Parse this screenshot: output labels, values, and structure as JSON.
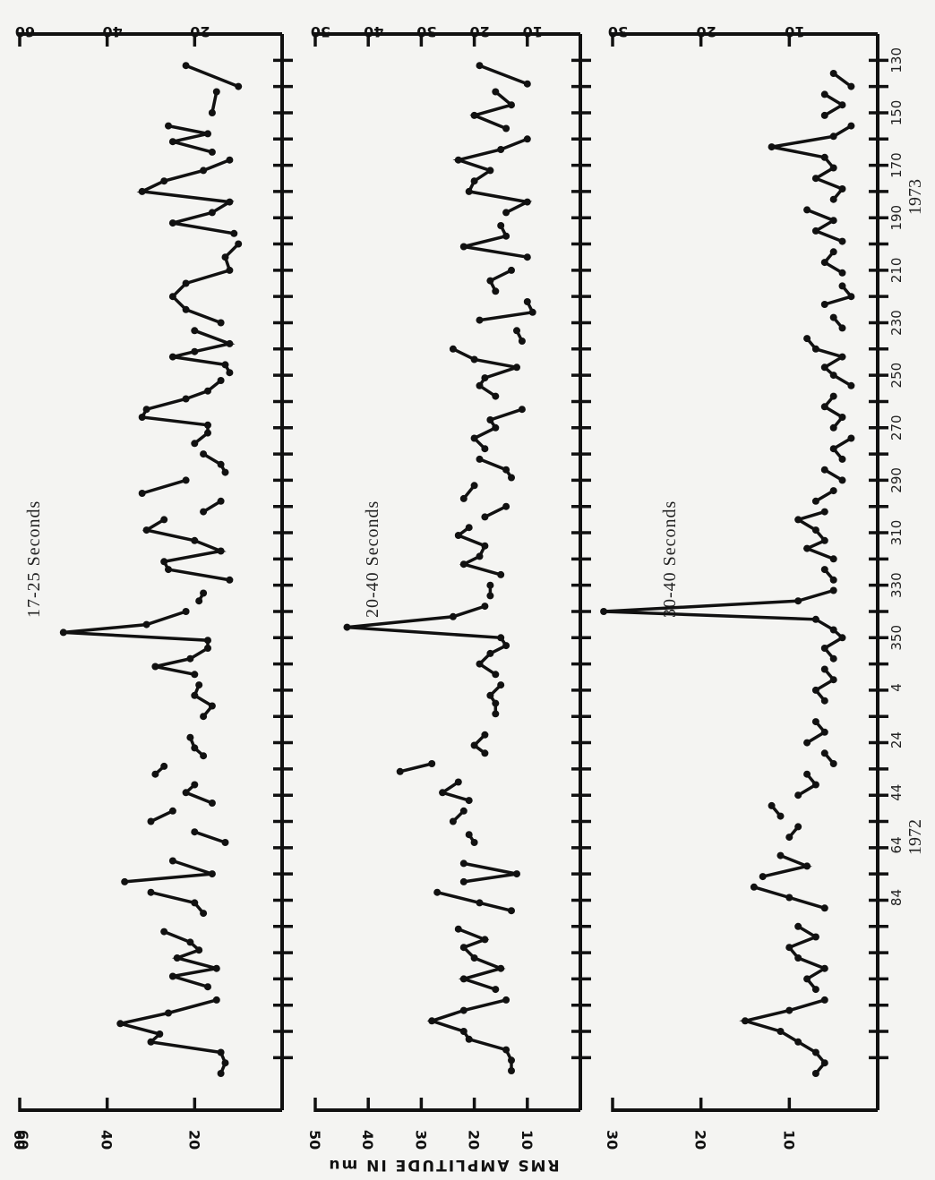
{
  "figure": {
    "ylabel": "RMS AMPLITUDE IN mu",
    "year_labels": [
      "1972",
      "1973"
    ],
    "day_ticks": [
      "130",
      "150",
      "170",
      "190",
      "210",
      "230",
      "250",
      "270",
      "290",
      "310",
      "330",
      "350",
      "4",
      "24",
      "44",
      "64",
      "84"
    ]
  },
  "chart_data": [
    {
      "type": "line",
      "title": "17-25 Seconds",
      "ylim": [
        0,
        60
      ],
      "yticks": [
        "20",
        "40",
        "60"
      ],
      "segments": [
        [
          [
            132,
            22
          ],
          [
            140,
            10
          ]
        ],
        [
          [
            142,
            15
          ],
          [
            150,
            16
          ]
        ],
        [
          [
            155,
            26
          ],
          [
            158,
            17
          ],
          [
            161,
            25
          ],
          [
            165,
            16
          ]
        ],
        [
          [
            168,
            12
          ],
          [
            172,
            18
          ],
          [
            176,
            27
          ],
          [
            180,
            32
          ],
          [
            184,
            12
          ],
          [
            188,
            16
          ],
          [
            192,
            25
          ],
          [
            196,
            11
          ]
        ],
        [
          [
            200,
            10
          ],
          [
            205,
            13
          ],
          [
            210,
            12
          ],
          [
            215,
            22
          ],
          [
            220,
            25
          ],
          [
            225,
            22
          ],
          [
            230,
            14
          ]
        ],
        [
          [
            233,
            20
          ],
          [
            238,
            12
          ],
          [
            241,
            20
          ],
          [
            243,
            25
          ],
          [
            246,
            13
          ],
          [
            249,
            12
          ]
        ],
        [
          [
            252,
            14
          ],
          [
            256,
            17
          ],
          [
            259,
            22
          ],
          [
            263,
            31
          ],
          [
            266,
            32
          ],
          [
            269,
            17
          ],
          [
            272,
            17
          ],
          [
            276,
            20
          ]
        ],
        [
          [
            280,
            18
          ],
          [
            284,
            14
          ],
          [
            287,
            13
          ]
        ],
        [
          [
            290,
            22
          ],
          [
            295,
            32
          ]
        ],
        [
          [
            298,
            14
          ],
          [
            302,
            18
          ]
        ],
        [
          [
            305,
            27
          ],
          [
            309,
            31
          ],
          [
            313,
            20
          ],
          [
            317,
            14
          ],
          [
            321,
            27
          ],
          [
            324,
            26
          ],
          [
            328,
            12
          ]
        ],
        [
          [
            333,
            18
          ],
          [
            336,
            19
          ]
        ],
        [
          [
            340,
            22
          ],
          [
            345,
            31
          ],
          [
            348,
            50
          ],
          [
            351,
            17
          ],
          [
            354,
            17
          ],
          [
            358,
            21
          ],
          [
            361,
            29
          ],
          [
            364,
            20
          ]
        ],
        [
          [
            368,
            19
          ],
          [
            372,
            20
          ],
          [
            376,
            16
          ],
          [
            380,
            18
          ]
        ],
        [
          [
            388,
            21
          ],
          [
            392,
            20
          ],
          [
            395,
            18
          ]
        ],
        [
          [
            399,
            27
          ],
          [
            402,
            29
          ]
        ],
        [
          [
            406,
            20
          ],
          [
            409,
            22
          ],
          [
            413,
            16
          ]
        ],
        [
          [
            416,
            25
          ],
          [
            420,
            30
          ]
        ],
        [
          [
            424,
            20
          ],
          [
            428,
            13
          ]
        ],
        [
          [
            435,
            25
          ],
          [
            440,
            16
          ],
          [
            443,
            36
          ]
        ],
        [
          [
            447,
            30
          ],
          [
            451,
            20
          ],
          [
            455,
            18
          ]
        ],
        [
          [
            462,
            27
          ],
          [
            466,
            21
          ],
          [
            469,
            19
          ],
          [
            472,
            24
          ],
          [
            476,
            15
          ],
          [
            479,
            25
          ],
          [
            483,
            17
          ]
        ],
        [
          [
            488,
            15
          ],
          [
            493,
            26
          ],
          [
            497,
            37
          ],
          [
            501,
            28
          ],
          [
            504,
            30
          ],
          [
            508,
            14
          ],
          [
            512,
            13
          ],
          [
            516,
            14
          ]
        ]
      ]
    },
    {
      "type": "line",
      "title": "20-40 Seconds",
      "ylim": [
        0,
        50
      ],
      "yticks": [
        "10",
        "20",
        "30",
        "40",
        "50"
      ],
      "segments": [
        [
          [
            132,
            19
          ],
          [
            139,
            10
          ]
        ],
        [
          [
            142,
            16
          ],
          [
            147,
            13
          ],
          [
            151,
            20
          ],
          [
            156,
            14
          ]
        ],
        [
          [
            160,
            10
          ],
          [
            164,
            15
          ],
          [
            168,
            23
          ],
          [
            172,
            17
          ],
          [
            176,
            20
          ],
          [
            180,
            21
          ],
          [
            184,
            10
          ],
          [
            188,
            14
          ]
        ],
        [
          [
            193,
            15
          ],
          [
            197,
            14
          ],
          [
            201,
            22
          ],
          [
            205,
            10
          ]
        ],
        [
          [
            210,
            13
          ],
          [
            214,
            17
          ],
          [
            218,
            16
          ]
        ],
        [
          [
            222,
            10
          ],
          [
            226,
            9
          ],
          [
            229,
            19
          ]
        ],
        [
          [
            233,
            12
          ],
          [
            237,
            11
          ]
        ],
        [
          [
            240,
            24
          ],
          [
            244,
            20
          ],
          [
            247,
            12
          ],
          [
            251,
            18
          ],
          [
            254,
            19
          ],
          [
            258,
            16
          ]
        ],
        [
          [
            263,
            11
          ],
          [
            267,
            17
          ],
          [
            270,
            16
          ],
          [
            274,
            20
          ],
          [
            278,
            18
          ]
        ],
        [
          [
            282,
            19
          ],
          [
            286,
            14
          ],
          [
            289,
            13
          ]
        ],
        [
          [
            292,
            20
          ],
          [
            297,
            22
          ]
        ],
        [
          [
            300,
            14
          ],
          [
            304,
            18
          ]
        ],
        [
          [
            308,
            21
          ],
          [
            311,
            23
          ],
          [
            315,
            18
          ],
          [
            319,
            19
          ],
          [
            322,
            22
          ],
          [
            326,
            15
          ]
        ],
        [
          [
            330,
            17
          ],
          [
            334,
            17
          ]
        ],
        [
          [
            338,
            18
          ],
          [
            342,
            24
          ],
          [
            346,
            44
          ],
          [
            350,
            15
          ],
          [
            353,
            14
          ],
          [
            356,
            17
          ],
          [
            360,
            19
          ],
          [
            364,
            16
          ]
        ],
        [
          [
            368,
            15
          ],
          [
            372,
            17
          ],
          [
            375,
            16
          ],
          [
            379,
            16
          ]
        ],
        [
          [
            387,
            18
          ],
          [
            391,
            20
          ],
          [
            394,
            18
          ]
        ],
        [
          [
            398,
            28
          ],
          [
            401,
            34
          ]
        ],
        [
          [
            405,
            23
          ],
          [
            409,
            26
          ],
          [
            412,
            21
          ]
        ],
        [
          [
            416,
            22
          ],
          [
            420,
            24
          ]
        ],
        [
          [
            425,
            21
          ],
          [
            428,
            20
          ]
        ],
        [
          [
            436,
            22
          ],
          [
            440,
            12
          ],
          [
            443,
            22
          ]
        ],
        [
          [
            447,
            27
          ],
          [
            451,
            19
          ],
          [
            454,
            13
          ]
        ],
        [
          [
            461,
            23
          ],
          [
            465,
            18
          ],
          [
            468,
            22
          ],
          [
            472,
            20
          ],
          [
            476,
            15
          ],
          [
            480,
            22
          ],
          [
            484,
            16
          ]
        ],
        [
          [
            488,
            14
          ],
          [
            492,
            22
          ],
          [
            496,
            28
          ],
          [
            500,
            22
          ],
          [
            503,
            21
          ],
          [
            507,
            14
          ],
          [
            511,
            13
          ],
          [
            515,
            13
          ]
        ]
      ]
    },
    {
      "type": "line",
      "title": "30-40 Seconds",
      "ylim": [
        0,
        30
      ],
      "yticks": [
        "10",
        "20",
        "30"
      ],
      "segments": [
        [
          [
            135,
            5
          ],
          [
            140,
            3
          ]
        ],
        [
          [
            143,
            6
          ],
          [
            147,
            4
          ],
          [
            151,
            6
          ]
        ],
        [
          [
            155,
            3
          ],
          [
            159,
            5
          ],
          [
            163,
            12
          ],
          [
            167,
            6
          ],
          [
            171,
            5
          ],
          [
            175,
            7
          ],
          [
            179,
            4
          ],
          [
            183,
            5
          ]
        ],
        [
          [
            187,
            8
          ],
          [
            191,
            5
          ],
          [
            195,
            7
          ],
          [
            199,
            4
          ]
        ],
        [
          [
            203,
            5
          ],
          [
            207,
            6
          ],
          [
            211,
            4
          ]
        ],
        [
          [
            216,
            4
          ],
          [
            220,
            3
          ],
          [
            223,
            6
          ]
        ],
        [
          [
            228,
            5
          ],
          [
            232,
            4
          ]
        ],
        [
          [
            236,
            8
          ],
          [
            240,
            7
          ],
          [
            243,
            4
          ],
          [
            247,
            6
          ],
          [
            250,
            5
          ],
          [
            254,
            3
          ]
        ],
        [
          [
            258,
            5
          ],
          [
            262,
            6
          ],
          [
            266,
            4
          ],
          [
            270,
            5
          ]
        ],
        [
          [
            274,
            3
          ],
          [
            278,
            5
          ],
          [
            282,
            4
          ]
        ],
        [
          [
            286,
            6
          ],
          [
            290,
            4
          ]
        ],
        [
          [
            294,
            5
          ],
          [
            298,
            7
          ]
        ],
        [
          [
            302,
            6
          ],
          [
            305,
            9
          ],
          [
            309,
            7
          ],
          [
            313,
            6
          ],
          [
            316,
            8
          ],
          [
            320,
            5
          ]
        ],
        [
          [
            324,
            6
          ],
          [
            328,
            5
          ]
        ],
        [
          [
            332,
            5
          ],
          [
            336,
            9
          ],
          [
            340,
            31
          ],
          [
            343,
            7
          ],
          [
            347,
            5
          ],
          [
            350,
            4
          ],
          [
            354,
            6
          ],
          [
            358,
            5
          ]
        ],
        [
          [
            362,
            6
          ],
          [
            366,
            5
          ],
          [
            370,
            7
          ],
          [
            374,
            6
          ]
        ],
        [
          [
            382,
            7
          ],
          [
            386,
            6
          ],
          [
            390,
            8
          ]
        ],
        [
          [
            394,
            6
          ],
          [
            398,
            5
          ]
        ],
        [
          [
            402,
            8
          ],
          [
            406,
            7
          ],
          [
            410,
            9
          ]
        ],
        [
          [
            414,
            12
          ],
          [
            418,
            11
          ]
        ],
        [
          [
            422,
            9
          ],
          [
            426,
            10
          ]
        ],
        [
          [
            433,
            11
          ],
          [
            437,
            8
          ],
          [
            441,
            13
          ]
        ],
        [
          [
            445,
            14
          ],
          [
            449,
            10
          ],
          [
            453,
            6
          ]
        ],
        [
          [
            460,
            9
          ],
          [
            464,
            7
          ],
          [
            468,
            10
          ],
          [
            472,
            9
          ],
          [
            476,
            6
          ],
          [
            480,
            8
          ],
          [
            484,
            7
          ]
        ],
        [
          [
            488,
            6
          ],
          [
            492,
            10
          ],
          [
            496,
            15
          ],
          [
            500,
            11
          ],
          [
            504,
            9
          ],
          [
            508,
            7
          ],
          [
            512,
            6
          ],
          [
            516,
            7
          ]
        ]
      ]
    }
  ]
}
